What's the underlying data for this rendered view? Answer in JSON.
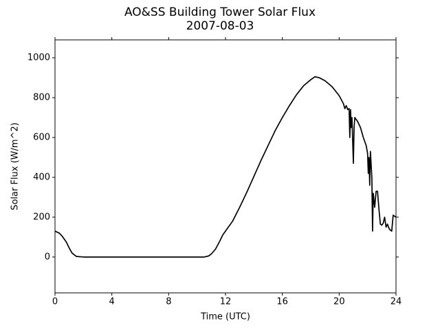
{
  "chart_data": {
    "type": "line",
    "title": "AO&SS Building Tower Solar Flux",
    "subtitle": "2007-08-03",
    "x_label": "Time (UTC)",
    "y_label": "Solar Flux (W/m^2)",
    "color": "#000000",
    "x": [
      0,
      0.3,
      0.5,
      0.8,
      1.0,
      1.2,
      1.5,
      2,
      4,
      6,
      8,
      10,
      10.5,
      10.8,
      11.0,
      11.3,
      11.6,
      11.8,
      12,
      12.5,
      13,
      13.5,
      14,
      14.5,
      15,
      15.5,
      16,
      16.5,
      17,
      17.5,
      18,
      18.3,
      18.6,
      19,
      19.5,
      20,
      20.3,
      20.4,
      20.5,
      20.6,
      20.7,
      20.75,
      20.8,
      20.85,
      20.9,
      21.0,
      21.05,
      21.1,
      21.3,
      21.5,
      21.7,
      21.9,
      22.0,
      22.05,
      22.1,
      22.15,
      22.2,
      22.3,
      22.35,
      22.4,
      22.5,
      22.6,
      22.7,
      22.8,
      22.9,
      23.0,
      23.1,
      23.2,
      23.3,
      23.4,
      23.5,
      23.6,
      23.7,
      23.8,
      23.9,
      24
    ],
    "values": [
      130,
      120,
      105,
      75,
      45,
      20,
      3,
      0,
      0,
      0,
      0,
      0,
      0,
      5,
      15,
      40,
      80,
      110,
      130,
      180,
      250,
      325,
      405,
      485,
      560,
      635,
      700,
      760,
      815,
      860,
      890,
      905,
      900,
      885,
      855,
      810,
      770,
      745,
      760,
      740,
      745,
      600,
      740,
      650,
      700,
      470,
      650,
      700,
      680,
      650,
      600,
      560,
      520,
      420,
      500,
      360,
      530,
      400,
      130,
      320,
      250,
      330,
      330,
      240,
      165,
      160,
      170,
      200,
      150,
      165,
      145,
      135,
      130,
      210,
      205,
      200
    ],
    "xlim": [
      0,
      24
    ],
    "xticks": [
      0,
      4,
      8,
      12,
      16,
      20,
      24
    ],
    "ylim": [
      -180,
      1090
    ],
    "yticks": [
      0,
      200,
      400,
      600,
      800,
      1000
    ]
  }
}
